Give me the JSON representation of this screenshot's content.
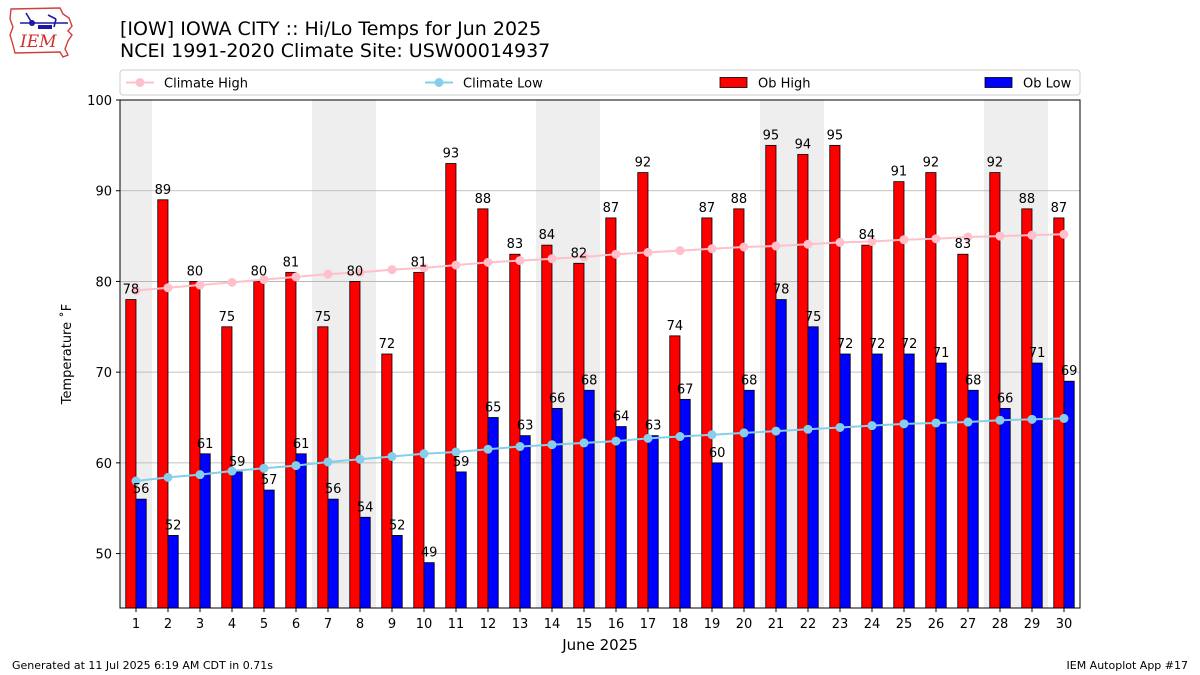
{
  "header": {
    "title_line1": "[IOW] IOWA CITY :: Hi/Lo Temps for Jun 2025",
    "title_line2": "NCEI 1991-2020 Climate Site: USW00014937",
    "logo_text": "IEM"
  },
  "footer": {
    "generated": "Generated at 11 Jul 2025 6:19 AM CDT in 0.71s",
    "app": "IEM Autoplot App #17"
  },
  "colors": {
    "ob_high": "#ff0000",
    "ob_low": "#0000ff",
    "climate_high": "#ffc0cb",
    "climate_low": "#87ceeb",
    "weekend_shade": "#eeeeee",
    "grid": "#b0b0b0"
  },
  "chart_data": {
    "type": "bar",
    "title": "[IOW] IOWA CITY :: Hi/Lo Temps for Jun 2025",
    "subtitle": "NCEI 1991-2020 Climate Site: USW00014937",
    "xlabel": "June 2025",
    "ylabel": "Temperature ˚F",
    "ylim": [
      44,
      100
    ],
    "yticks": [
      50,
      60,
      70,
      80,
      90,
      100
    ],
    "grid": true,
    "legend_position": "top",
    "categories": [
      "1",
      "2",
      "3",
      "4",
      "5",
      "6",
      "7",
      "8",
      "9",
      "10",
      "11",
      "12",
      "13",
      "14",
      "15",
      "16",
      "17",
      "18",
      "19",
      "20",
      "21",
      "22",
      "23",
      "24",
      "25",
      "26",
      "27",
      "28",
      "29",
      "30"
    ],
    "shaded_days": [
      1,
      7,
      8,
      14,
      15,
      21,
      22,
      28,
      29
    ],
    "series": [
      {
        "name": "Ob High",
        "kind": "bar",
        "values": [
          78,
          89,
          80,
          75,
          80,
          81,
          75,
          80,
          72,
          81,
          93,
          88,
          83,
          84,
          82,
          87,
          92,
          74,
          87,
          88,
          95,
          94,
          95,
          84,
          91,
          92,
          83,
          92,
          88,
          87
        ]
      },
      {
        "name": "Ob Low",
        "kind": "bar",
        "values": [
          56,
          52,
          61,
          59,
          57,
          61,
          56,
          54,
          52,
          49,
          59,
          65,
          63,
          66,
          68,
          64,
          63,
          67,
          60,
          68,
          78,
          75,
          72,
          72,
          72,
          71,
          68,
          66,
          71,
          69
        ]
      },
      {
        "name": "Climate High",
        "kind": "line",
        "values": [
          79.0,
          79.3,
          79.6,
          79.9,
          80.2,
          80.5,
          80.8,
          81.0,
          81.3,
          81.5,
          81.8,
          82.1,
          82.3,
          82.5,
          82.7,
          83.0,
          83.2,
          83.4,
          83.6,
          83.8,
          83.9,
          84.1,
          84.3,
          84.4,
          84.6,
          84.7,
          84.9,
          85.0,
          85.1,
          85.2
        ]
      },
      {
        "name": "Climate Low",
        "kind": "line",
        "values": [
          58.0,
          58.4,
          58.7,
          59.1,
          59.4,
          59.7,
          60.1,
          60.4,
          60.7,
          61.0,
          61.2,
          61.5,
          61.8,
          62.0,
          62.2,
          62.4,
          62.7,
          62.9,
          63.1,
          63.3,
          63.5,
          63.7,
          63.9,
          64.1,
          64.3,
          64.4,
          64.5,
          64.7,
          64.8,
          64.9
        ]
      }
    ]
  }
}
